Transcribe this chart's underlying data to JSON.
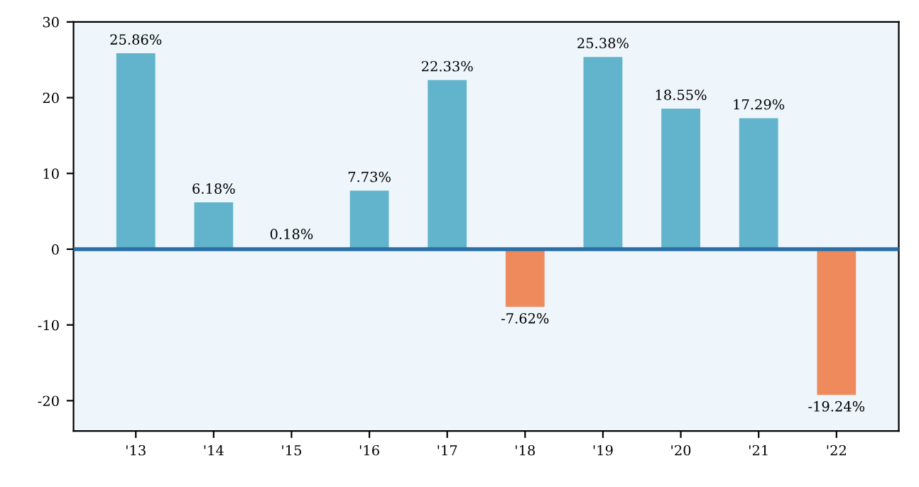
{
  "chart_data": {
    "type": "bar",
    "categories": [
      "'13",
      "'14",
      "'15",
      "'16",
      "'17",
      "'18",
      "'19",
      "'20",
      "'21",
      "'22"
    ],
    "values": [
      25.86,
      6.18,
      0.18,
      7.73,
      22.33,
      -7.62,
      25.38,
      18.55,
      17.29,
      -19.24
    ],
    "value_labels": [
      "25.86%",
      "6.18%",
      "0.18%",
      "7.73%",
      "22.33%",
      "-7.62%",
      "25.38%",
      "18.55%",
      "17.29%",
      "-19.24%"
    ],
    "colors": [
      "#62b4cc",
      "#62b4cc",
      "#62b4cc",
      "#62b4cc",
      "#62b4cc",
      "#ee8a5c",
      "#62b4cc",
      "#62b4cc",
      "#62b4cc",
      "#ee8a5c"
    ],
    "ylim": [
      -24,
      30
    ],
    "yticks": [
      -20,
      -10,
      0,
      10,
      20,
      30
    ],
    "ref_lines": [
      {
        "axis": "y",
        "value": 0,
        "color": "#2a6fa8",
        "line_style": "solid"
      }
    ],
    "grid": false,
    "legend": false
  }
}
